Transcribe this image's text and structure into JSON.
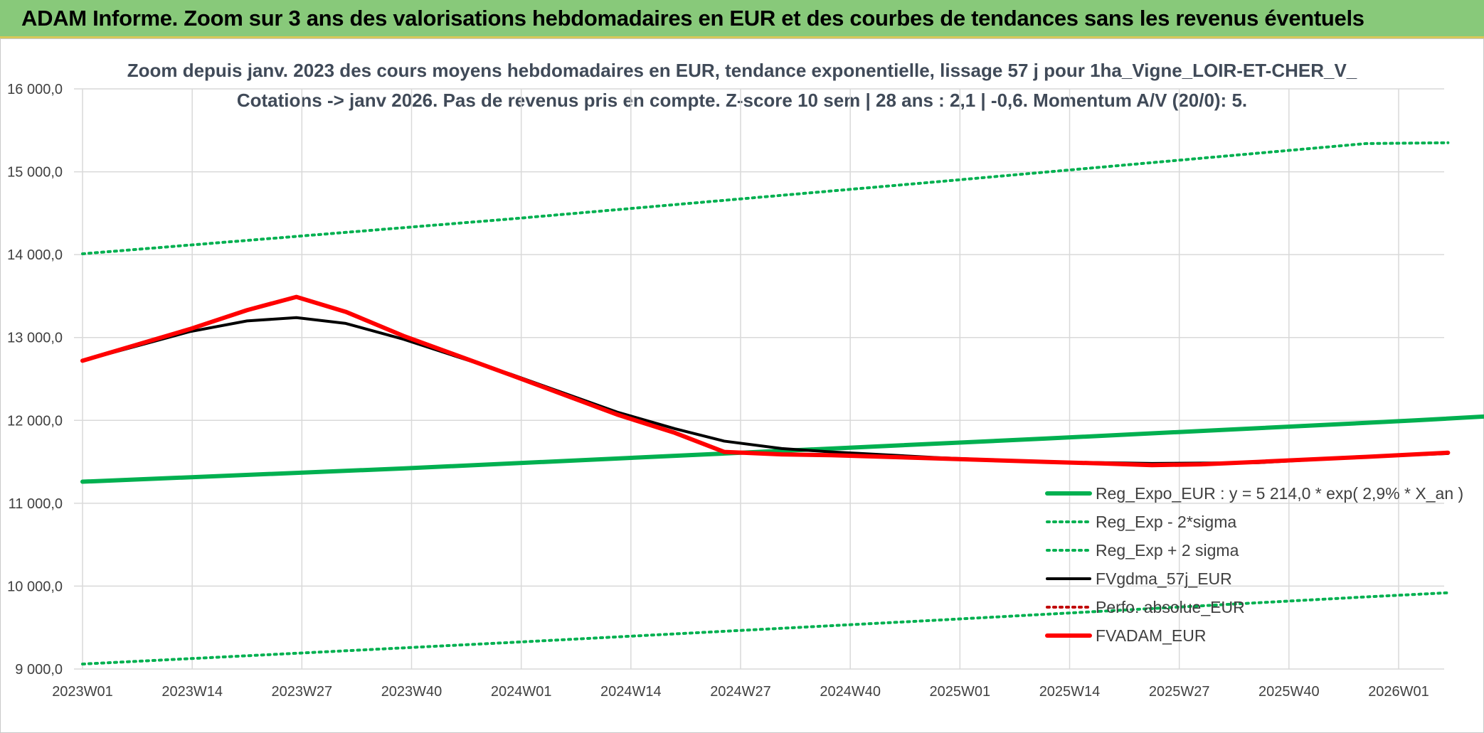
{
  "banner": {
    "title": "ADAM Informe. Zoom sur 3 ans des valorisations hebdomadaires en EUR et des courbes de tendances sans les revenus éventuels"
  },
  "colors": {
    "banner_bg": "#88c97a",
    "reg_expo": "#00b050",
    "fvgdma": "#000000",
    "perfo": "#c00000",
    "fvadam": "#ff0000",
    "grid": "#d9d9d9"
  },
  "chart_data": {
    "type": "line",
    "title_line1": "Zoom depuis janv. 2023 des cours moyens hebdomadaires en EUR, tendance exponentielle, lissage 57 j pour 1ha_Vigne_LOIR-ET-CHER_V_",
    "title_line2": "Cotations -> janv 2026. Pas de revenus pris en compte. Z-score 10 sem | 28 ans : 2,1 | -0,6. Momentum A/V (20/0): 5.",
    "ylim": [
      9000,
      16000
    ],
    "yticks": [
      "9 000,0",
      "10 000,0",
      "11 000,0",
      "12 000,0",
      "13 000,0",
      "14 000,0",
      "15 000,0",
      "16 000,0"
    ],
    "ytick_values": [
      9000,
      10000,
      11000,
      12000,
      13000,
      14000,
      15000,
      16000
    ],
    "xtick_labels": [
      "2023W01",
      "2023W14",
      "2023W27",
      "2023W40",
      "2024W01",
      "2024W14",
      "2024W27",
      "2024W40",
      "2025W01",
      "2025W14",
      "2025W27",
      "2025W40",
      "2026W01"
    ],
    "x_range_weeks": [
      0,
      160
    ],
    "grid": true,
    "legend_position": "bottom-right",
    "series": [
      {
        "name": "Reg_Expo_EUR : y = 5 214,0 * exp( 2,9% *  X_an )",
        "style": "solid-thick",
        "color": "#00b050",
        "points": [
          [
            0,
            11260
          ],
          [
            39,
            11420
          ],
          [
            78,
            11600
          ],
          [
            117,
            11780
          ],
          [
            156,
            11970
          ],
          [
            162,
            12000
          ],
          [
            180,
            12100
          ],
          [
            206,
            12270
          ],
          [
            210,
            12320
          ]
        ]
      },
      {
        "name": "Reg_Exp - 2*sigma",
        "style": "dotted",
        "color": "#00b050",
        "points": [
          [
            0,
            9060
          ],
          [
            52,
            9320
          ],
          [
            104,
            9590
          ],
          [
            156,
            9870
          ],
          [
            166,
            9920
          ]
        ]
      },
      {
        "name": "Reg_Exp + 2 sigma",
        "style": "dotted",
        "color": "#00b050",
        "points": [
          [
            0,
            14010
          ],
          [
            52,
            14430
          ],
          [
            104,
            14880
          ],
          [
            156,
            15340
          ],
          [
            166,
            15350
          ]
        ]
      },
      {
        "name": "FVgdma_57j_EUR",
        "style": "solid",
        "color": "#000000",
        "points": [
          [
            0,
            12720
          ],
          [
            13,
            13070
          ],
          [
            20,
            13200
          ],
          [
            26,
            13240
          ],
          [
            32,
            13170
          ],
          [
            39,
            12980
          ],
          [
            52,
            12560
          ],
          [
            65,
            12100
          ],
          [
            72,
            11900
          ],
          [
            78,
            11750
          ],
          [
            85,
            11660
          ],
          [
            91,
            11620
          ],
          [
            104,
            11550
          ],
          [
            117,
            11500
          ],
          [
            130,
            11480
          ],
          [
            143,
            11490
          ],
          [
            156,
            11560
          ],
          [
            166,
            11600
          ]
        ]
      },
      {
        "name": "Perfo. absolue_EUR",
        "style": "dotted",
        "color": "#c00000",
        "points": []
      },
      {
        "name": "FVADAM_EUR",
        "style": "solid-thick",
        "color": "#ff0000",
        "points": [
          [
            0,
            12720
          ],
          [
            13,
            13100
          ],
          [
            20,
            13330
          ],
          [
            26,
            13490
          ],
          [
            32,
            13310
          ],
          [
            39,
            13020
          ],
          [
            52,
            12550
          ],
          [
            65,
            12070
          ],
          [
            72,
            11850
          ],
          [
            78,
            11620
          ],
          [
            85,
            11590
          ],
          [
            91,
            11580
          ],
          [
            104,
            11540
          ],
          [
            117,
            11500
          ],
          [
            124,
            11480
          ],
          [
            130,
            11460
          ],
          [
            136,
            11470
          ],
          [
            143,
            11500
          ],
          [
            156,
            11560
          ],
          [
            166,
            11610
          ]
        ]
      }
    ]
  }
}
